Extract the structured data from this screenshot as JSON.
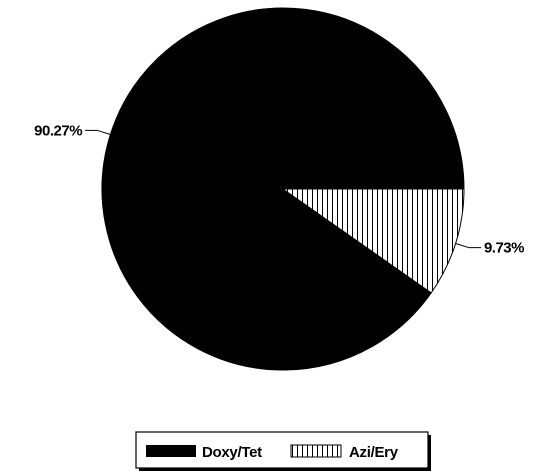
{
  "chart_data": {
    "type": "pie",
    "title": "",
    "slices": [
      {
        "name": "Doxy/Tet",
        "value": 90.27,
        "label": "90.27%",
        "color": "#000000",
        "pattern": "solid"
      },
      {
        "name": "Azi/Ery",
        "value": 9.73,
        "label": "9.73%",
        "color": "#ffffff",
        "pattern": "vertical-hatch"
      }
    ],
    "legend": {
      "position": "bottom-center",
      "items": [
        {
          "name": "Doxy/Tet",
          "pattern": "solid"
        },
        {
          "name": "Azi/Ery",
          "pattern": "vertical-hatch"
        }
      ]
    }
  }
}
